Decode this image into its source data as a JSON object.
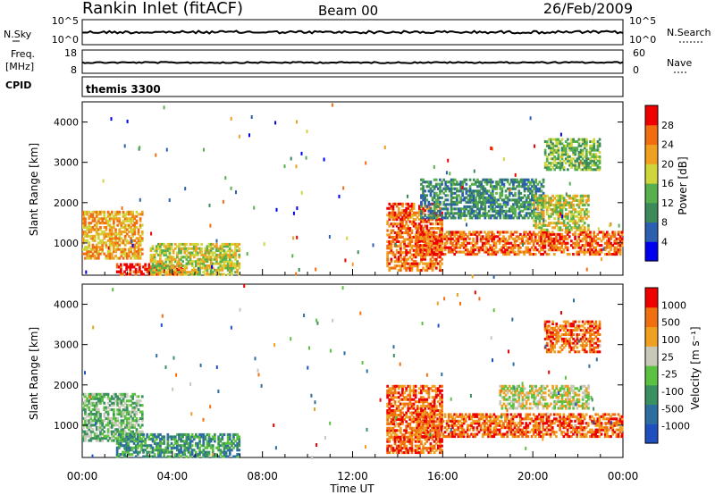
{
  "header": {
    "station": "Rankin Inlet (fitACF)",
    "beam": "Beam 00",
    "date": "26/Feb/2009"
  },
  "noise_panel": {
    "left_label": "N.Sky",
    "right_label": "N.Search",
    "left_ticks": [
      "10^5",
      "10^0"
    ],
    "right_ticks": [
      "10^5",
      "10^0"
    ]
  },
  "freq_panel": {
    "left_label_line1": "Freq.",
    "left_label_line2": "[MHz]",
    "right_label": "Nave",
    "left_ticks": [
      "18",
      "8"
    ],
    "right_ticks": [
      "60",
      "0"
    ]
  },
  "cpid_panel": {
    "label": "CPID",
    "program": "themis 3300"
  },
  "colors": {
    "power_scale": [
      "#0000ee",
      "#2c5fb0",
      "#3c8a5a",
      "#57b04b",
      "#cfd53a",
      "#f0a020",
      "#f06d10",
      "#ee0000"
    ],
    "velocity_scale": [
      "#2050c0",
      "#2d6ea0",
      "#3a9060",
      "#5cc040",
      "#c8c8b8",
      "#f0a020",
      "#f07010",
      "#ee0000"
    ]
  },
  "chart_data": [
    {
      "type": "heatmap",
      "title": "",
      "xlabel": "",
      "ylabel": "Slant Range [km]",
      "x_ticks": [
        "00:00",
        "04:00",
        "08:00",
        "12:00",
        "16:00",
        "20:00",
        "00:00"
      ],
      "xlim_hours": [
        0,
        24
      ],
      "ylim": [
        200,
        4500
      ],
      "y_ticks": [
        1000,
        2000,
        3000,
        4000
      ],
      "colorbar": {
        "label": "Power [dB]",
        "ticks": [
          "28",
          "24",
          "20",
          "16",
          "12",
          "8",
          "4"
        ],
        "range": [
          0,
          30
        ]
      },
      "regions": [
        {
          "t": [
            0.0,
            2.7
          ],
          "r": [
            600,
            1800
          ],
          "level": 5
        },
        {
          "t": [
            1.5,
            4.5
          ],
          "r": [
            200,
            500
          ],
          "level": 7
        },
        {
          "t": [
            3.0,
            7.0
          ],
          "r": [
            200,
            1000
          ],
          "level": 4
        },
        {
          "t": [
            13.5,
            16.0
          ],
          "r": [
            300,
            2000
          ],
          "level": 6
        },
        {
          "t": [
            14.8,
            24.0
          ],
          "r": [
            700,
            1300
          ],
          "level": 6
        },
        {
          "t": [
            15.0,
            20.5
          ],
          "r": [
            1600,
            2600
          ],
          "level": 2
        },
        {
          "t": [
            20.0,
            22.5
          ],
          "r": [
            1300,
            2200
          ],
          "level": 4
        },
        {
          "t": [
            20.5,
            23.0
          ],
          "r": [
            2800,
            3600
          ],
          "level": 3
        }
      ]
    },
    {
      "type": "heatmap",
      "title": "",
      "xlabel": "Time UT",
      "ylabel": "Slant Range [km]",
      "x_ticks": [
        "00:00",
        "04:00",
        "08:00",
        "12:00",
        "16:00",
        "20:00",
        "00:00"
      ],
      "xlim_hours": [
        0,
        24
      ],
      "ylim": [
        200,
        4500
      ],
      "y_ticks": [
        1000,
        2000,
        3000,
        4000
      ],
      "colorbar": {
        "label": "Velocity [m s⁻¹]",
        "ticks": [
          "1000",
          "500",
          "100",
          "25",
          "-25",
          "-100",
          "-500",
          "-1000"
        ],
        "range": [
          -1000,
          1000
        ]
      },
      "regions": [
        {
          "t": [
            0.0,
            2.7
          ],
          "r": [
            600,
            1800
          ],
          "level": 3
        },
        {
          "t": [
            1.5,
            7.0
          ],
          "r": [
            200,
            800
          ],
          "level": 2
        },
        {
          "t": [
            13.5,
            16.0
          ],
          "r": [
            300,
            2000
          ],
          "level": 6
        },
        {
          "t": [
            14.8,
            24.0
          ],
          "r": [
            700,
            1300
          ],
          "level": 6
        },
        {
          "t": [
            18.5,
            22.5
          ],
          "r": [
            1400,
            2000
          ],
          "level": 4
        },
        {
          "t": [
            20.5,
            23.0
          ],
          "r": [
            2800,
            3600
          ],
          "level": 6
        }
      ]
    }
  ]
}
